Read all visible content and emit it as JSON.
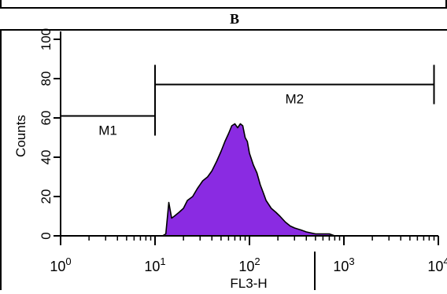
{
  "panel_label": "B",
  "chart_data": {
    "type": "area",
    "title": "",
    "xlabel": "FL3-H",
    "ylabel": "Counts",
    "xscale": "log",
    "xlim": [
      1,
      10000
    ],
    "ylim": [
      0,
      100
    ],
    "grid": false,
    "legend": "none",
    "fill_color": "#8a2be2",
    "outline_color": "#000000",
    "x_ticks": [
      {
        "value": 1,
        "base": "10",
        "exp": "0"
      },
      {
        "value": 10,
        "base": "10",
        "exp": "1"
      },
      {
        "value": 100,
        "base": "10",
        "exp": "2"
      },
      {
        "value": 1000,
        "base": "10",
        "exp": "3"
      },
      {
        "value": 10000,
        "base": "10",
        "exp": "4"
      }
    ],
    "y_ticks": [
      {
        "value": 0,
        "label": "0"
      },
      {
        "value": 20,
        "label": "20"
      },
      {
        "value": 40,
        "label": "40"
      },
      {
        "value": 60,
        "label": "60"
      },
      {
        "value": 80,
        "label": "80"
      },
      {
        "value": 100,
        "label": "100"
      }
    ],
    "gates": [
      {
        "name": "M1",
        "x_start": 1,
        "x_end": 10,
        "y": 61
      },
      {
        "name": "M2",
        "x_start": 10,
        "x_end": 9000,
        "y": 77
      }
    ],
    "histogram": {
      "x": [
        1,
        10,
        12,
        13,
        14,
        15,
        16,
        18,
        20,
        22,
        25,
        28,
        32,
        36,
        40,
        45,
        50,
        55,
        60,
        65,
        70,
        75,
        80,
        85,
        90,
        95,
        100,
        110,
        120,
        130,
        140,
        150,
        170,
        190,
        210,
        240,
        270,
        300,
        350,
        400,
        500,
        600,
        700,
        800,
        1000,
        10000
      ],
      "y": [
        0,
        0,
        0,
        1,
        17,
        9,
        10,
        12,
        14,
        18,
        20,
        24,
        28,
        30,
        33,
        38,
        43,
        48,
        52,
        56,
        57,
        55,
        57,
        56,
        50,
        48,
        42,
        36,
        32,
        26,
        22,
        18,
        14,
        12,
        10,
        7,
        5,
        4,
        3,
        2,
        1,
        1,
        1,
        0,
        0,
        0
      ]
    }
  }
}
